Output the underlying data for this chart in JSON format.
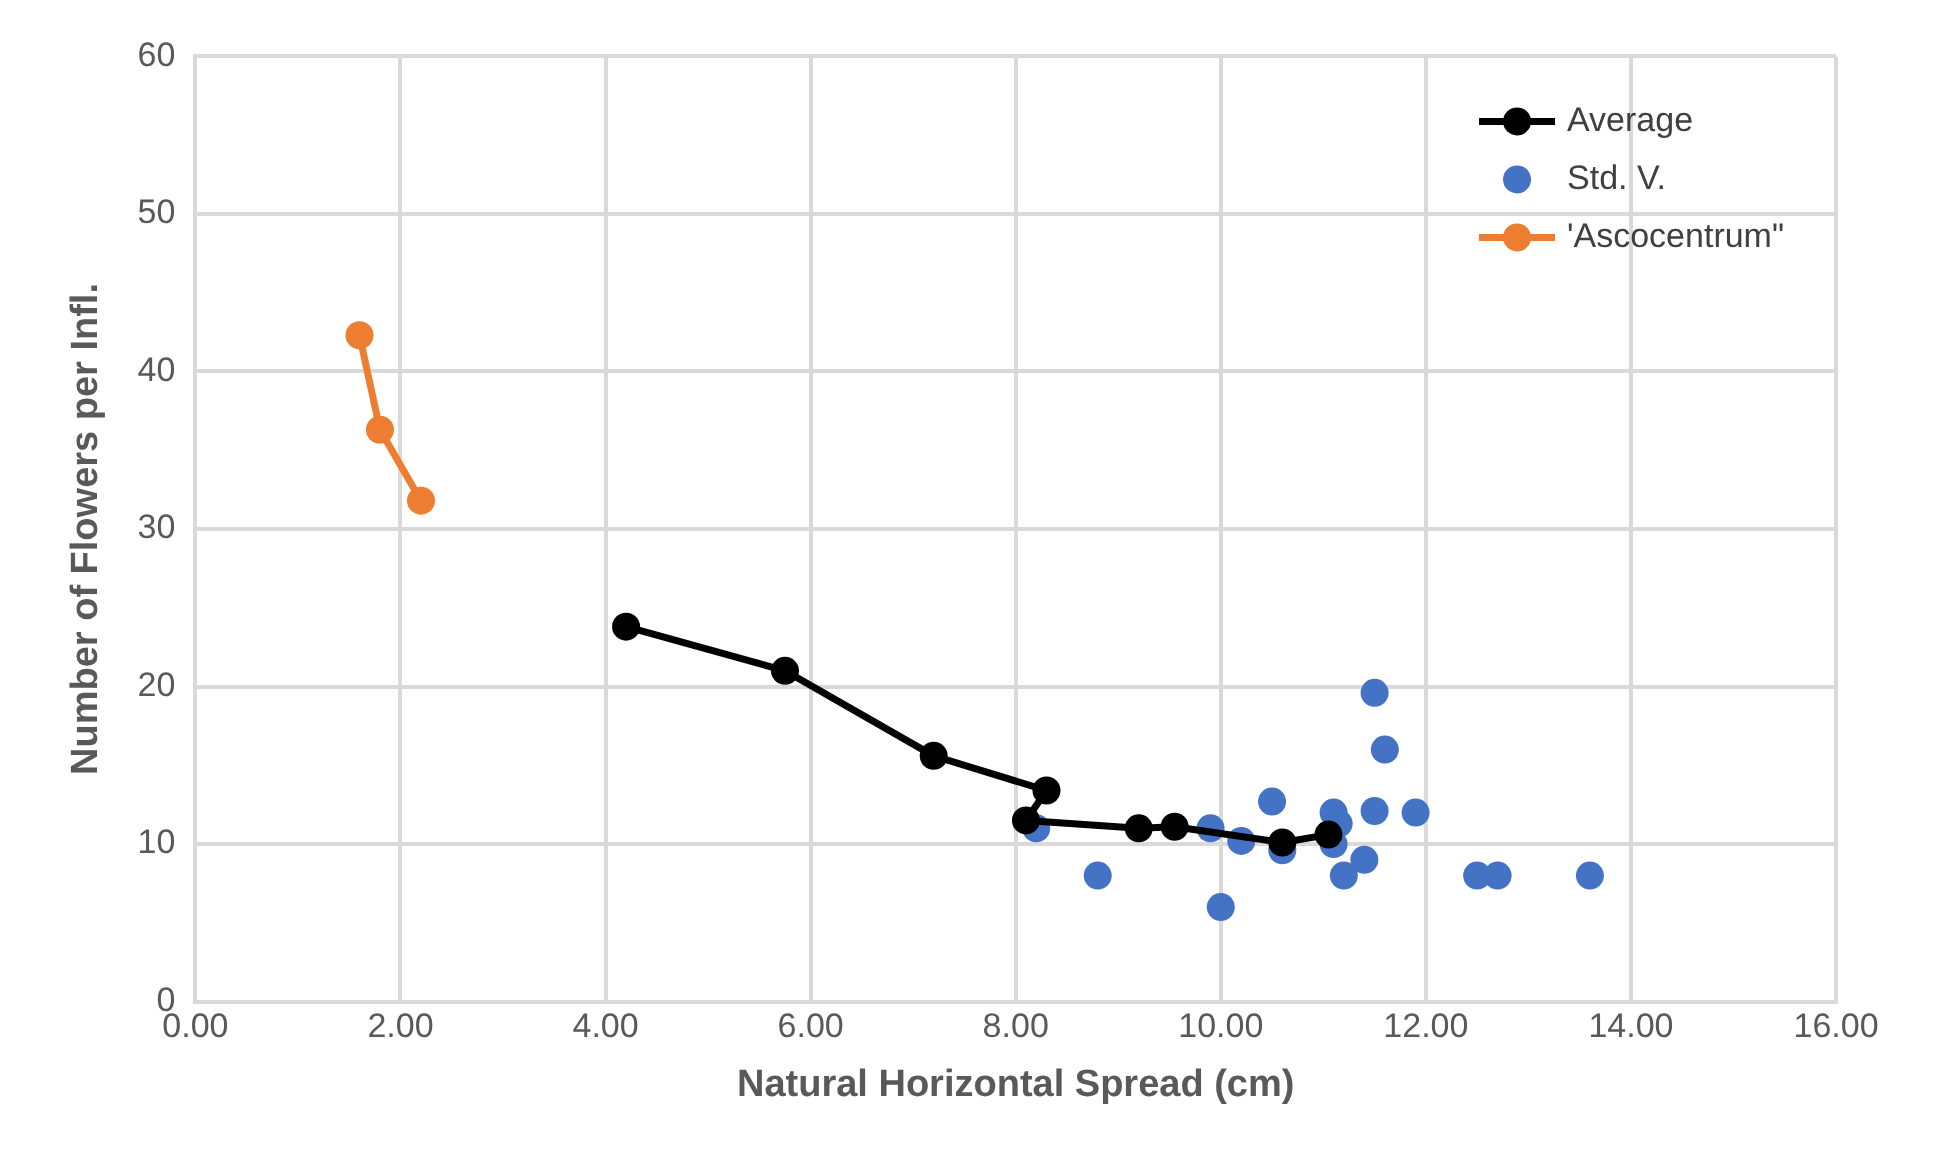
{
  "chart_data": {
    "type": "line",
    "xlabel": "Natural Horizontal Spread (cm)",
    "ylabel": "Number of Flowers per Infl.",
    "xlim": [
      0,
      16
    ],
    "ylim": [
      0,
      60
    ],
    "xticks": [
      {
        "value": 0,
        "label": "0.00"
      },
      {
        "value": 2,
        "label": "2.00"
      },
      {
        "value": 4,
        "label": "4.00"
      },
      {
        "value": 6,
        "label": "6.00"
      },
      {
        "value": 8,
        "label": "8.00"
      },
      {
        "value": 10,
        "label": "10.00"
      },
      {
        "value": 12,
        "label": "12.00"
      },
      {
        "value": 14,
        "label": "14.00"
      },
      {
        "value": 16,
        "label": "16.00"
      }
    ],
    "yticks": [
      0,
      10,
      20,
      30,
      40,
      50,
      60
    ],
    "grid": true,
    "legend": "top right",
    "marker": "circle",
    "series": [
      {
        "name": "Average",
        "color": "#000000",
        "x": [
          4.2,
          5.75,
          7.2,
          8.3,
          8.1,
          9.2,
          9.55,
          10.6,
          11.05
        ],
        "values": [
          23.8,
          21,
          15.6,
          13.4,
          11.5,
          11,
          11.1,
          10.1,
          10.6
        ]
      },
      {
        "name": "Std. V.",
        "type": "scatter",
        "color": "#4472c4",
        "x": [
          8.2,
          8.8,
          9.9,
          10.0,
          10.2,
          10.5,
          10.6,
          11.1,
          11.15,
          11.1,
          11.2,
          11.4,
          11.5,
          11.6,
          11.5,
          11.9,
          12.5,
          12.7,
          13.6
        ],
        "values": [
          11,
          8,
          11,
          6,
          10.2,
          12.7,
          9.6,
          12,
          11.3,
          10,
          8,
          9,
          19.6,
          16,
          12.1,
          12,
          8,
          8,
          8
        ]
      },
      {
        "name": "'Ascocentrum\"",
        "color": "#ed7d31",
        "x": [
          1.6,
          1.8,
          2.2
        ],
        "values": [
          42.3,
          36.3,
          31.8
        ]
      }
    ]
  }
}
